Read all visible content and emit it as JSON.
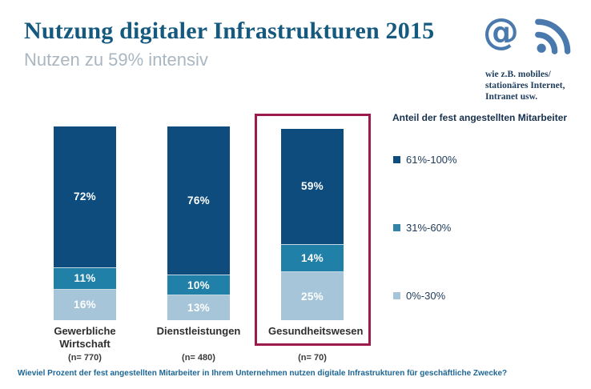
{
  "header": {
    "title": "Nutzung digitaler Infrastrukturen 2015",
    "subtitle": "Nutzen zu 59% intensiv",
    "at_symbol": "@",
    "icon_caption_lines": [
      "wie z.B. mobiles/",
      "stationäres Internet,",
      "Intranet usw."
    ],
    "icon_color": "#4a7aad"
  },
  "legend": {
    "title": "Anteil der fest angestellten Mitarbeiter",
    "items": [
      {
        "label": "61%-100%",
        "color": "#0d4c7d"
      },
      {
        "label": "31%-60%",
        "color": "#3584a8"
      },
      {
        "label": "0%-30%",
        "color": "#a6c5d8"
      }
    ]
  },
  "chart_data": {
    "type": "bar",
    "stacked": true,
    "title": "Nutzung digitaler Infrastrukturen 2015",
    "subtitle": "Nutzen zu 59% intensiv",
    "categories": [
      "Gewerbliche Wirtschaft",
      "Dienstleistungen",
      "Gesundheitswesen"
    ],
    "category_n": [
      "(n= 770)",
      "(n= 480)",
      "(n= 70)"
    ],
    "series": [
      {
        "name": "61%-100%",
        "color": "#0d4c7d",
        "values": [
          72,
          76,
          59
        ]
      },
      {
        "name": "31%-60%",
        "color": "#2180a8",
        "values": [
          11,
          10,
          14
        ]
      },
      {
        "name": "0%-30%",
        "color": "#a6c5d8",
        "values": [
          16,
          13,
          25
        ]
      }
    ],
    "value_suffix": "%",
    "ylabel": "",
    "xlabel": "",
    "grid": false,
    "legend_position": "right",
    "legend_title": "Anteil der fest angestellten Mitarbeiter",
    "highlighted_category": "Gesundheitswesen",
    "highlight_color": "#9c1a4c"
  },
  "footer": {
    "question": "Wieviel Prozent der fest angestellten Mitarbeiter in Ihrem Unternehmen nutzen digitale Infrastrukturen für geschäftliche Zwecke?"
  }
}
